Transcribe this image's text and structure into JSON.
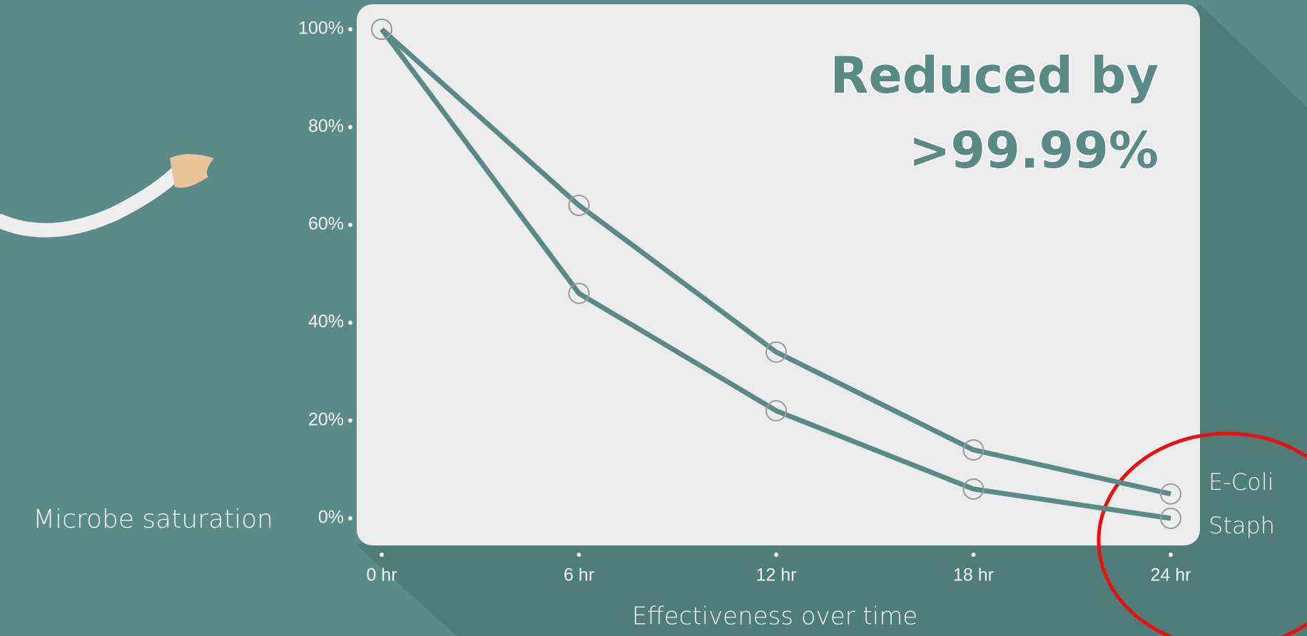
{
  "chart_data": {
    "type": "line",
    "annotation": [
      "Reduced by",
      ">99.99%"
    ],
    "x_label": "Effectiveness over time",
    "y_label": "Microbe saturation",
    "categories": [
      "0 hr",
      "6 hr",
      "12 hr",
      "18 hr",
      "24 hr"
    ],
    "series": [
      {
        "name": "E-Coli",
        "color": "#5a8a86",
        "values": [
          100,
          64,
          34,
          14,
          5
        ]
      },
      {
        "name": "Staph",
        "color": "#5a8a86",
        "values": [
          100,
          46,
          22,
          6,
          0
        ]
      }
    ],
    "ylim": [
      0,
      100
    ],
    "yticks": [
      {
        "value": 0,
        "label": "0%"
      },
      {
        "value": 20,
        "label": "20%"
      },
      {
        "value": 40,
        "label": "40%"
      },
      {
        "value": 60,
        "label": "60%"
      },
      {
        "value": 80,
        "label": "80%"
      },
      {
        "value": 100,
        "label": "100%"
      }
    ],
    "grid": false
  }
}
